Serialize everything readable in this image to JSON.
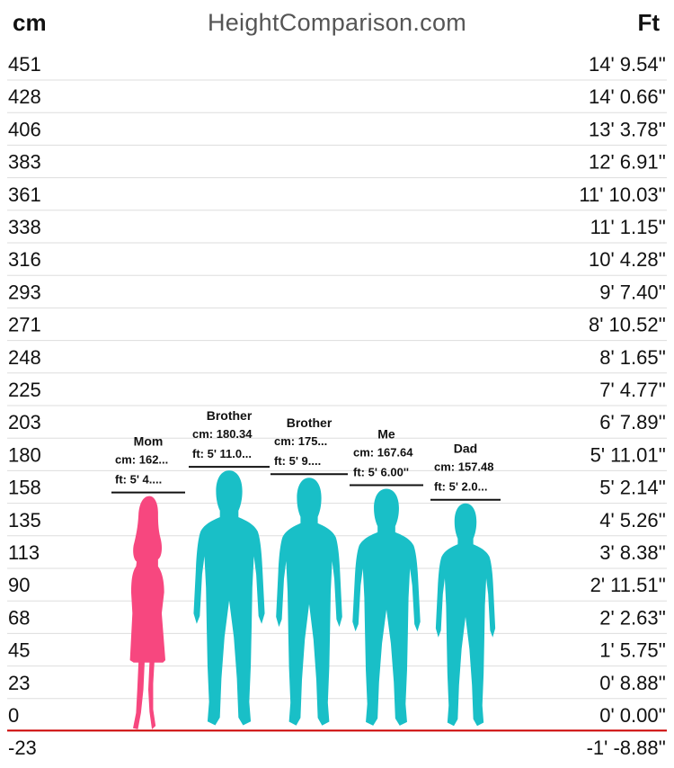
{
  "header": {
    "left_unit": "cm",
    "site": "HeightComparison.com",
    "right_unit": "Ft"
  },
  "colors": {
    "female": "#f7477f",
    "male": "#19bfc7",
    "baseline": "#cc0000",
    "grid": "#dddddd"
  },
  "chart_data": {
    "type": "bar",
    "title": "",
    "ylabel_left": "cm",
    "ylabel_right": "Ft",
    "ylim": [
      -23,
      451
    ],
    "grid": true,
    "y_ticks_cm": [
      "451",
      "428",
      "406",
      "383",
      "361",
      "338",
      "316",
      "293",
      "271",
      "248",
      "225",
      "203",
      "180",
      "158",
      "135",
      "113",
      "90",
      "68",
      "45",
      "23",
      "0",
      "-23"
    ],
    "y_ticks_ft": [
      "14' 9.54''",
      "14' 0.66''",
      "13' 3.78''",
      "12' 6.91''",
      "11' 10.03''",
      "11' 1.15''",
      "10' 4.28''",
      "9' 7.40''",
      "8' 10.52''",
      "8' 1.65''",
      "7' 4.77''",
      "6' 7.89''",
      "5' 11.01''",
      "5' 2.14''",
      "4' 5.26''",
      "3' 8.38''",
      "2' 11.51''",
      "2' 2.63''",
      "1' 5.75''",
      "0' 8.88''",
      "0' 0.00''",
      "-1' -8.88''"
    ],
    "categories": [
      "Mom",
      "Brother",
      "Brother",
      "Me",
      "Dad"
    ],
    "values": [
      162.56,
      180.34,
      175.26,
      167.64,
      157.48
    ],
    "people": [
      {
        "name": "Mom",
        "cm_label": "cm: 162...",
        "ft_label": "ft: 5' 4....",
        "gender": "female",
        "height_cm": 162.56
      },
      {
        "name": "Brother",
        "cm_label": "cm: 180.34",
        "ft_label": "ft: 5' 11.0...",
        "gender": "male",
        "height_cm": 180.34
      },
      {
        "name": "Brother",
        "cm_label": "cm: 175...",
        "ft_label": "ft: 5' 9....",
        "gender": "male",
        "height_cm": 175.26
      },
      {
        "name": "Me",
        "cm_label": "cm: 167.64",
        "ft_label": "ft: 5' 6.00''",
        "gender": "male",
        "height_cm": 167.64
      },
      {
        "name": "Dad",
        "cm_label": "cm: 157.48",
        "ft_label": "ft: 5' 2.0...",
        "gender": "male",
        "height_cm": 157.48
      }
    ]
  }
}
